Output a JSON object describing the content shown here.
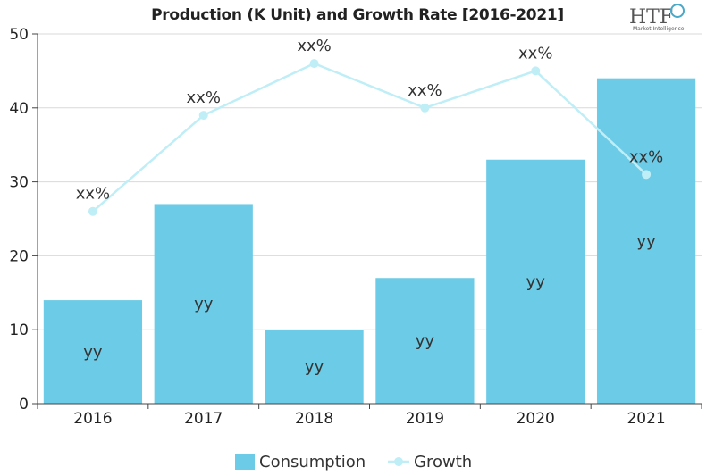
{
  "logo": {
    "text": "HTF",
    "subtext": "Market Intelligence"
  },
  "chart_data": {
    "type": "bar",
    "title": "Production (K Unit) and Growth Rate [2016-2021]",
    "categories": [
      "2016",
      "2017",
      "2018",
      "2019",
      "2020",
      "2021"
    ],
    "ylim": [
      0,
      50
    ],
    "yticks": [
      0,
      10,
      20,
      30,
      40,
      50
    ],
    "grid": true,
    "legend_position": "bottom",
    "series": [
      {
        "name": "Consumption",
        "type": "bar",
        "color": "#6ccbe6",
        "values": [
          14,
          27,
          10,
          17,
          33,
          44
        ],
        "labels": [
          "yy",
          "yy",
          "yy",
          "yy",
          "yy",
          "yy"
        ]
      },
      {
        "name": "Growth",
        "type": "line",
        "color": "#bfeef7",
        "values": [
          26,
          39,
          46,
          40,
          45,
          31
        ],
        "labels": [
          "xx%",
          "xx%",
          "xx%",
          "xx%",
          "xx%",
          "xx%"
        ]
      }
    ]
  }
}
